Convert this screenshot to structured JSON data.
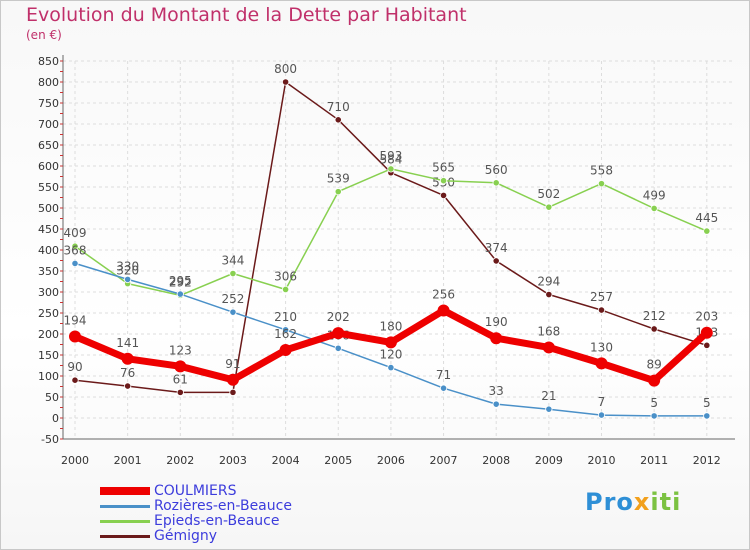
{
  "title": "Evolution du Montant de la Dette par Habitant",
  "subtitle": "(en €)",
  "logo": {
    "part1": "Pro",
    "part2": "x",
    "part3": "iti"
  },
  "chart_data": {
    "type": "line",
    "x": [
      "2000",
      "2001",
      "2002",
      "2003",
      "2004",
      "2005",
      "2006",
      "2007",
      "2008",
      "2009",
      "2010",
      "2011",
      "2012"
    ],
    "ylim": [
      -50,
      850
    ],
    "yticks": [
      -50,
      0,
      50,
      100,
      150,
      200,
      250,
      300,
      350,
      400,
      450,
      500,
      550,
      600,
      650,
      700,
      750,
      800,
      850
    ],
    "grid": true,
    "legend_position": "bottom-left",
    "series": [
      {
        "name": "COULMIERS",
        "color": "#ee0000",
        "values": [
          194,
          141,
          123,
          91,
          162,
          202,
          180,
          256,
          190,
          168,
          130,
          89,
          203
        ],
        "labels": [
          "194",
          "141",
          "123",
          "91",
          "162",
          "202",
          "180",
          "256",
          "190",
          "168",
          "130",
          "89",
          "203"
        ]
      },
      {
        "name": "Rozières-en-Beauce",
        "color": "#4a90c8",
        "values": [
          368,
          330,
          295,
          252,
          210,
          166,
          120,
          71,
          33,
          21,
          7,
          5,
          5
        ],
        "labels": [
          "368",
          "330",
          "295",
          "252",
          "210",
          "166",
          "120",
          "71",
          "33",
          "21",
          "7",
          "5",
          "5"
        ]
      },
      {
        "name": "Epieds-en-Beauce",
        "color": "#88d050",
        "values": [
          409,
          320,
          292,
          344,
          306,
          539,
          593,
          565,
          560,
          502,
          558,
          499,
          445
        ],
        "labels": [
          "409",
          "320",
          "292",
          "344",
          "306",
          "539",
          "593",
          "565",
          "560",
          "502",
          "558",
          "499",
          "445"
        ]
      },
      {
        "name": "Gémigny",
        "color": "#6b1a1a",
        "values": [
          90,
          76,
          61,
          61,
          800,
          710,
          584,
          530,
          374,
          294,
          257,
          212,
          173
        ],
        "labels": [
          "90",
          "76",
          "61",
          "",
          "800",
          "710",
          "584",
          "530",
          "374",
          "294",
          "257",
          "212",
          "173"
        ]
      }
    ]
  }
}
